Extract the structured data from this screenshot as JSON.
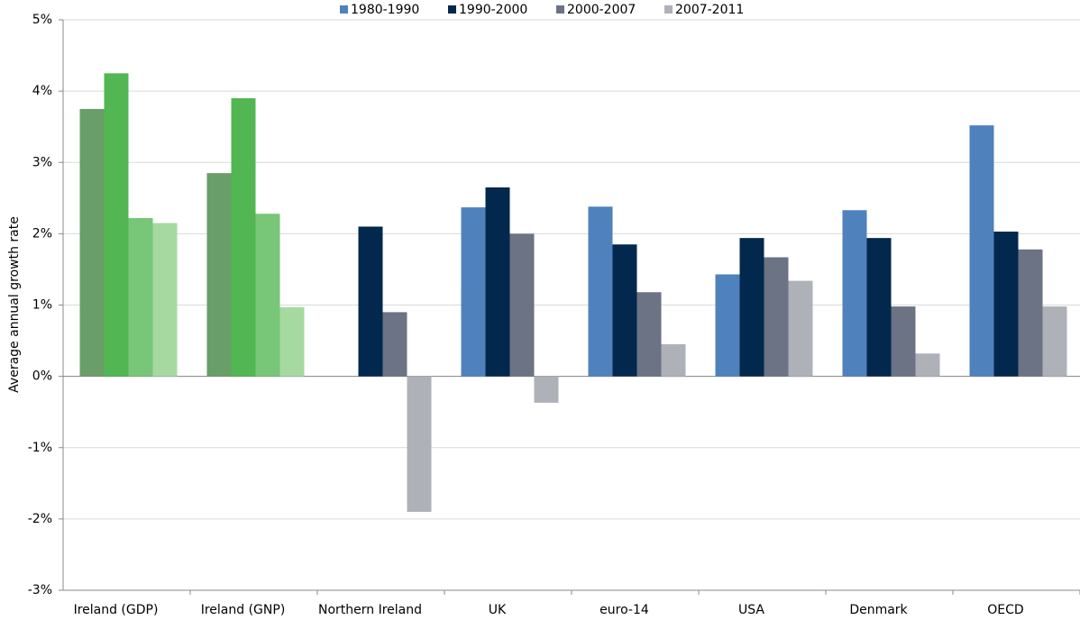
{
  "chart_data": {
    "type": "bar",
    "y_label": "Average annual growth rate",
    "categories": [
      "Ireland (GDP)",
      "Ireland (GNP)",
      "Northern Ireland",
      "UK",
      "euro-14",
      "USA",
      "Denmark",
      "OECD"
    ],
    "series": [
      {
        "name": "1980-1990",
        "color": "#4f81bd",
        "colors": [
          "#6a9e69",
          "#6a9e69",
          "#4f81bd",
          "#4f81bd",
          "#4f81bd",
          "#4f81bd",
          "#4f81bd",
          "#4f81bd"
        ],
        "values": [
          3.75,
          2.85,
          null,
          2.37,
          2.38,
          1.43,
          2.33,
          3.52
        ]
      },
      {
        "name": "1990-2000",
        "color": "#03284d",
        "colors": [
          "#52b652",
          "#52b652",
          "#03284d",
          "#03284d",
          "#03284d",
          "#03284d",
          "#03284d",
          "#03284d"
        ],
        "values": [
          4.25,
          3.9,
          2.1,
          2.65,
          1.85,
          1.94,
          1.94,
          2.03
        ]
      },
      {
        "name": "2000-2007",
        "color": "#6b7385",
        "colors": [
          "#78c678",
          "#78c678",
          "#6b7385",
          "#6b7385",
          "#6b7385",
          "#6b7385",
          "#6b7385",
          "#6b7385"
        ],
        "values": [
          2.22,
          2.28,
          0.9,
          2.0,
          1.18,
          1.67,
          0.98,
          1.78
        ]
      },
      {
        "name": "2007-2011",
        "color": "#aeb1b8",
        "colors": [
          "#a5d9a0",
          "#a5d9a0",
          "#aeb1b8",
          "#aeb1b8",
          "#aeb1b8",
          "#aeb1b8",
          "#aeb1b8",
          "#aeb1b8"
        ],
        "values": [
          2.15,
          0.97,
          -1.9,
          -0.37,
          0.45,
          1.34,
          0.32,
          0.98
        ]
      }
    ],
    "ylim": [
      -3,
      5
    ],
    "yticks": [
      {
        "value": -3,
        "label": "-3%"
      },
      {
        "value": -2,
        "label": "-2%"
      },
      {
        "value": -1,
        "label": "-1%"
      },
      {
        "value": 0,
        "label": "0%"
      },
      {
        "value": 1,
        "label": "1%"
      },
      {
        "value": 2,
        "label": "2%"
      },
      {
        "value": 3,
        "label": "3%"
      },
      {
        "value": 4,
        "label": "4%"
      },
      {
        "value": 5,
        "label": "5%"
      }
    ],
    "grid": true,
    "legend": "top"
  }
}
